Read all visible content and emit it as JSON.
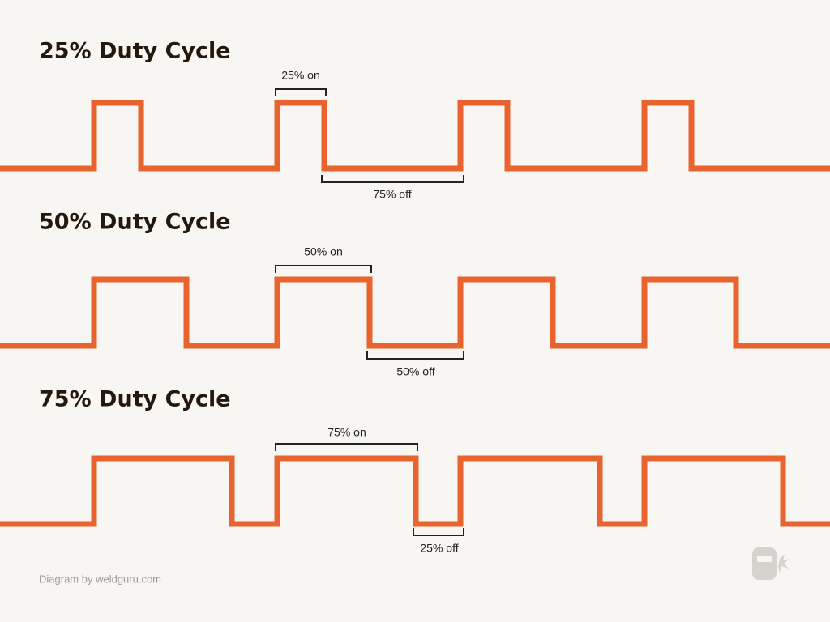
{
  "sections": [
    {
      "title": "25% Duty Cycle",
      "on_label": "25% on",
      "off_label": "75% off"
    },
    {
      "title": "50% Duty Cycle",
      "on_label": "50% on",
      "off_label": "50% off"
    },
    {
      "title": "75% Duty Cycle",
      "on_label": "75% on",
      "off_label": "25% off"
    }
  ],
  "footer": {
    "credit": "Diagram by weldguru.com"
  }
}
